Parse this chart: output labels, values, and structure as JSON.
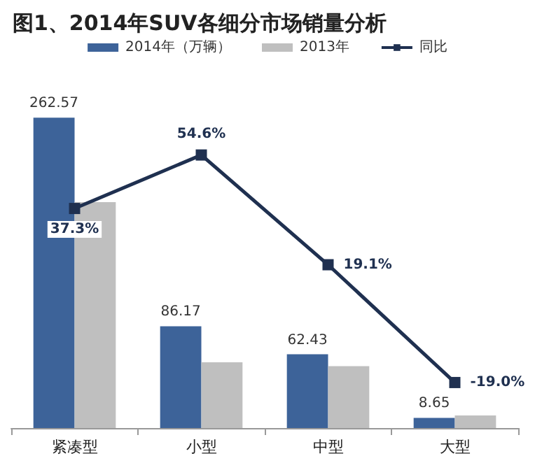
{
  "chart_data": {
    "type": "bar",
    "title": "图1、2014年SUV各细分市场销量分析",
    "categories": [
      "紧凑型",
      "小型",
      "中型",
      "大型"
    ],
    "series": [
      {
        "name": "2014年（万辆）",
        "color": "#3d6399",
        "values": [
          262.57,
          86.17,
          62.43,
          8.65
        ],
        "value_labels": [
          "262.57",
          "86.17",
          "62.43",
          "8.65"
        ]
      },
      {
        "name": "2013年",
        "color": "#bfbfbf",
        "values": [
          191.2,
          55.7,
          52.4,
          10.7
        ]
      },
      {
        "name": "同比",
        "type": "line",
        "axis": "y2",
        "color": "#1f3050",
        "values": [
          37.3,
          54.6,
          19.1,
          -19.0
        ],
        "value_labels": [
          "37.3%",
          "54.6%",
          "19.1%",
          "-19.0%"
        ]
      }
    ],
    "tick_labels": "x",
    "legend": "top",
    "marker": "square",
    "grid": false
  }
}
